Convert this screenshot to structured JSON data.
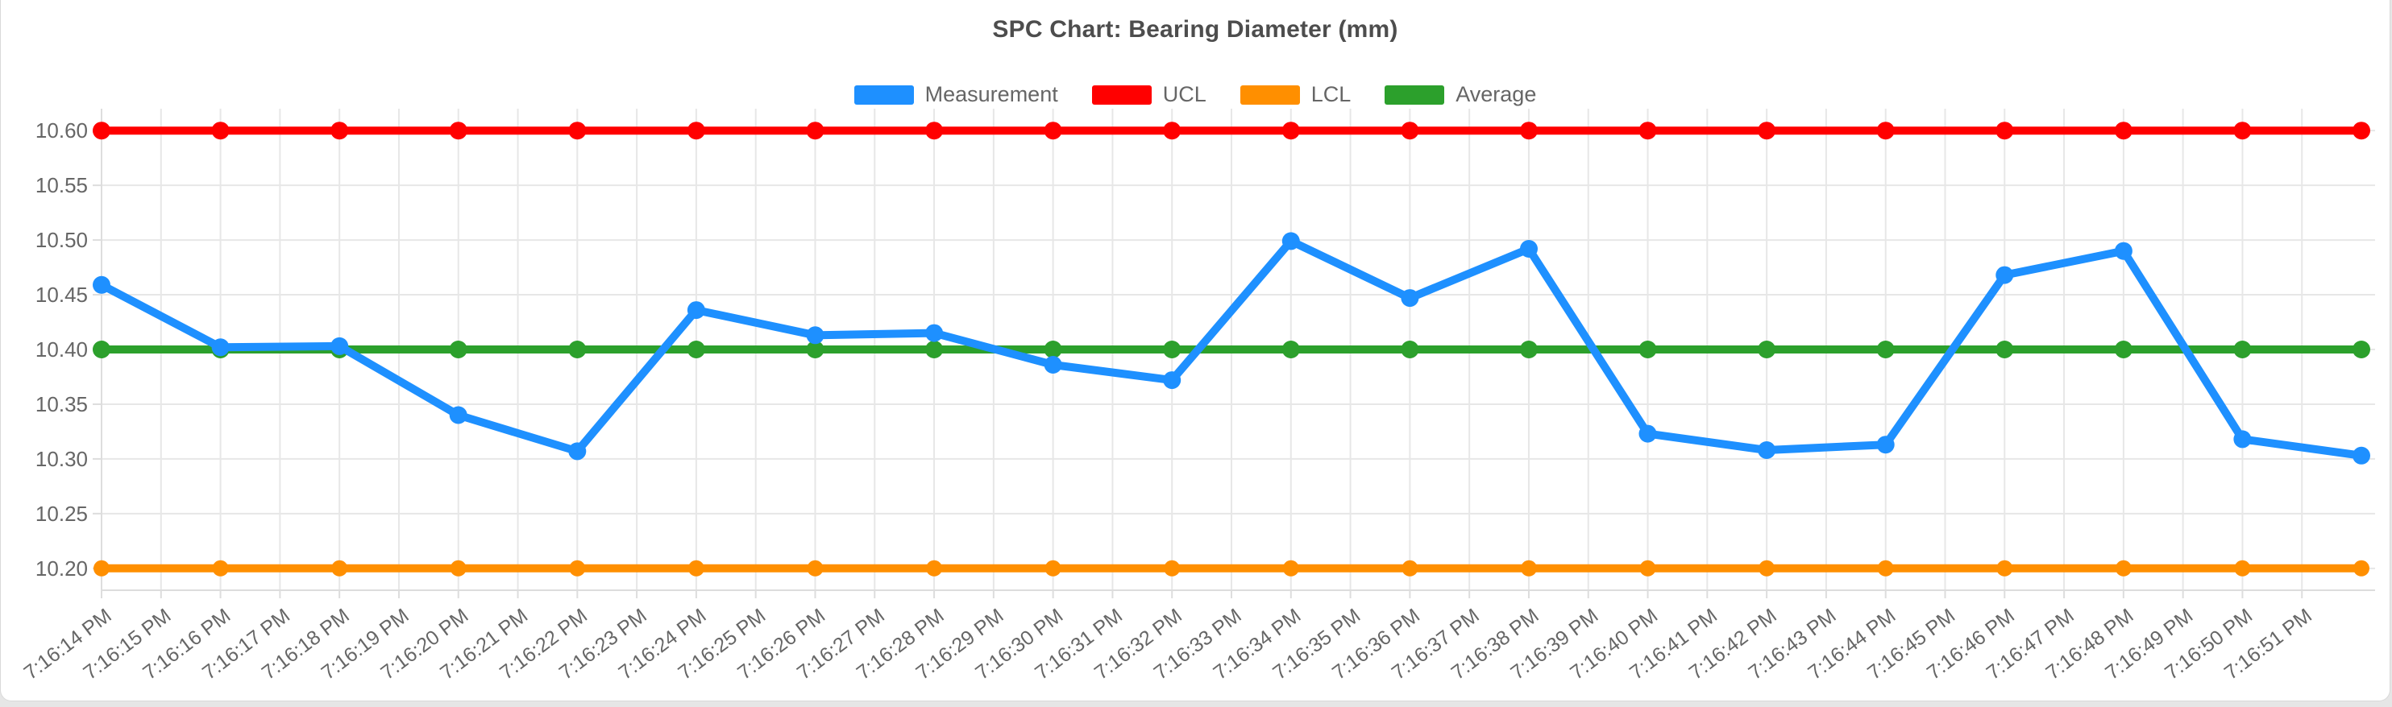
{
  "page": {
    "background_color": "#e6e6e6",
    "card_background": "#ffffff",
    "card_border_color": "#d9d9d9"
  },
  "axis_style": {
    "tick_text_color": "#666666",
    "grid_color": "#e7e7e7",
    "axis_border_color": "#dddddd",
    "title_color": "#4d4d4d"
  },
  "chart_data": {
    "type": "line",
    "title": "SPC Chart: Bearing Diameter (mm)",
    "xlabel": "",
    "ylabel": "",
    "grid": true,
    "legend_position": "top",
    "ylim": [
      10.18,
      10.62
    ],
    "y_ticks": [
      10.6,
      10.55,
      10.5,
      10.45,
      10.4,
      10.35,
      10.3,
      10.25,
      10.2
    ],
    "x_tick_labels": [
      "7:16:14 PM",
      "7:16:15 PM",
      "7:16:16 PM",
      "7:16:17 PM",
      "7:16:18 PM",
      "7:16:19 PM",
      "7:16:20 PM",
      "7:16:21 PM",
      "7:16:22 PM",
      "7:16:23 PM",
      "7:16:24 PM",
      "7:16:25 PM",
      "7:16:26 PM",
      "7:16:27 PM",
      "7:16:28 PM",
      "7:16:29 PM",
      "7:16:30 PM",
      "7:16:31 PM",
      "7:16:32 PM",
      "7:16:33 PM",
      "7:16:34 PM",
      "7:16:35 PM",
      "7:16:36 PM",
      "7:16:37 PM",
      "7:16:38 PM",
      "7:16:39 PM",
      "7:16:40 PM",
      "7:16:41 PM",
      "7:16:42 PM",
      "7:16:43 PM",
      "7:16:44 PM",
      "7:16:45 PM",
      "7:16:46 PM",
      "7:16:47 PM",
      "7:16:48 PM",
      "7:16:49 PM",
      "7:16:50 PM",
      "7:16:51 PM"
    ],
    "point_seconds_offset": [
      0,
      2,
      4,
      6,
      8,
      10,
      12,
      14,
      16,
      18,
      20,
      22,
      24,
      26,
      28,
      30,
      32,
      34,
      36,
      38
    ],
    "series": [
      {
        "name": "Measurement",
        "color": "#1E90FF",
        "values": [
          10.459,
          10.402,
          10.403,
          10.34,
          10.307,
          10.436,
          10.413,
          10.415,
          10.386,
          10.372,
          10.499,
          10.447,
          10.492,
          10.323,
          10.308,
          10.313,
          10.468,
          10.49,
          10.318,
          10.303
        ]
      },
      {
        "name": "UCL",
        "color": "#FF0000",
        "values": [
          10.6,
          10.6,
          10.6,
          10.6,
          10.6,
          10.6,
          10.6,
          10.6,
          10.6,
          10.6,
          10.6,
          10.6,
          10.6,
          10.6,
          10.6,
          10.6,
          10.6,
          10.6,
          10.6,
          10.6
        ]
      },
      {
        "name": "LCL",
        "color": "#FF8F00",
        "values": [
          10.2,
          10.2,
          10.2,
          10.2,
          10.2,
          10.2,
          10.2,
          10.2,
          10.2,
          10.2,
          10.2,
          10.2,
          10.2,
          10.2,
          10.2,
          10.2,
          10.2,
          10.2,
          10.2,
          10.2
        ]
      },
      {
        "name": "Average",
        "color": "#2CA02C",
        "values": [
          10.4,
          10.4,
          10.4,
          10.4,
          10.4,
          10.4,
          10.4,
          10.4,
          10.4,
          10.4,
          10.4,
          10.4,
          10.4,
          10.4,
          10.4,
          10.4,
          10.4,
          10.4,
          10.4,
          10.4
        ]
      }
    ]
  }
}
